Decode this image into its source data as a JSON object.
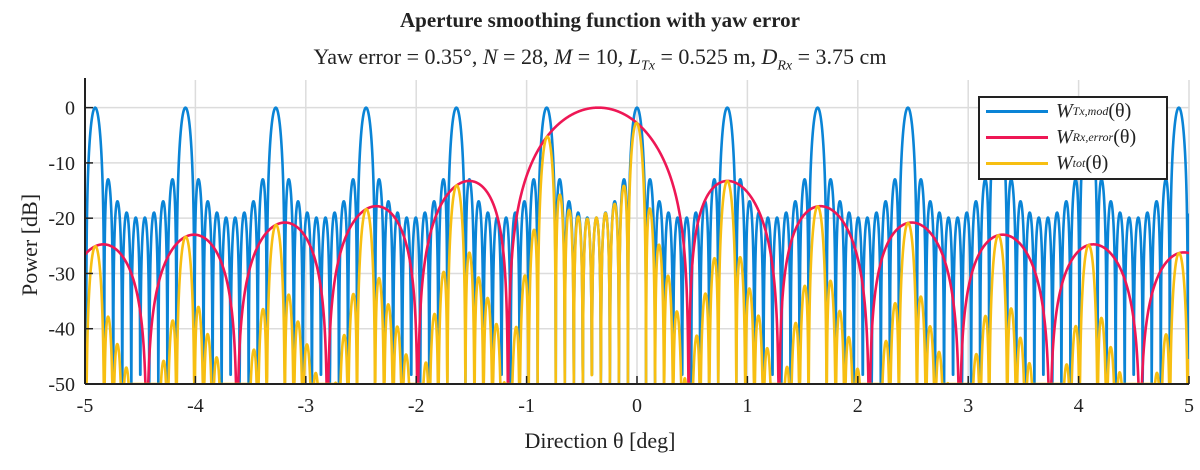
{
  "chart_data": {
    "type": "line",
    "title": "Aperture smoothing function with yaw error",
    "subtitle": {
      "p1": "Yaw error = 0.35°, ",
      "N_sym": "N",
      "N_val": " = 28, ",
      "M_sym": "M",
      "M_val": " = 10, ",
      "L_sym": "L",
      "L_sub": "Tx",
      "L_val": " = 0.525 m, ",
      "D_sym": "D",
      "D_sub": "Rx",
      "D_val": " = 3.75 cm"
    },
    "xlabel": "Direction θ [deg]",
    "ylabel": "Power [dB]",
    "xlim": [
      -5,
      5
    ],
    "ylim": [
      -50,
      5
    ],
    "xticks": [
      -5,
      -4,
      -3,
      -2,
      -1,
      0,
      1,
      2,
      3,
      4,
      5
    ],
    "yticks": [
      0,
      -10,
      -20,
      -30,
      -40,
      -50
    ],
    "grid": true,
    "legend_position": "top-right",
    "model": {
      "grating_lobe_period_deg": 0.818,
      "tx_subarray_elements": 10,
      "yaw_error_deg": -0.35
    },
    "series": [
      {
        "name": "W_Tx,mod(θ)",
        "main": "W",
        "sub": "Tx,mod",
        "arg": "(θ)",
        "color": "#0a84d6",
        "description_points": {
          "peaks_deg": [
            -4.91,
            -4.09,
            -3.27,
            -2.45,
            -1.64,
            -0.82,
            0,
            0.82,
            1.64,
            2.45,
            3.27,
            4.09,
            4.91
          ],
          "peak_db": 0,
          "first_sidelobe_db": -13,
          "sidelobe_floor_db": -20
        }
      },
      {
        "name": "W_Rx,error(θ)",
        "main": "W",
        "sub": "Rx,error",
        "arg": "(θ)",
        "color": "#ee1755",
        "description_points": {
          "peak_deg": -0.35,
          "peak_db": 0,
          "sidelobes_deg": [
            -1.55,
            0.82,
            -2.37,
            1.64,
            -3.2,
            2.5,
            -4.06,
            3.33,
            -4.87,
            4.15
          ],
          "sidelobes_db": [
            -13,
            -13,
            -18,
            -18,
            -21,
            -21,
            -23,
            -23,
            -25,
            -25
          ]
        }
      },
      {
        "name": "W_tot(θ)",
        "main": "W",
        "sub": "tot",
        "arg": "(θ)",
        "color": "#f7bf12",
        "description_points": {
          "peaks_deg": [
            -0.82,
            0,
            -1.64,
            0.82
          ],
          "peaks_db": [
            -5,
            -2,
            -14,
            -14
          ]
        }
      }
    ]
  }
}
